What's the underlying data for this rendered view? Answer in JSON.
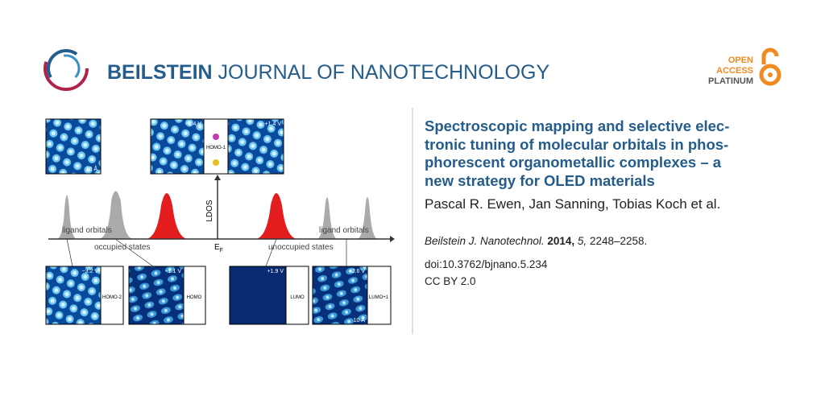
{
  "header": {
    "journal_bold": "BEILSTEIN",
    "journal_rest": "JOURNAL OF NANOTECHNOLOGY",
    "badge": [
      "OPEN",
      "ACCESS",
      "PLATINUM"
    ]
  },
  "figure": {
    "tiles": {
      "top_left": "10 Å",
      "top_mid_left": "−1.4 V",
      "top_mid_right": "+1.4 V",
      "top_mid_orbital": "HOMO-1",
      "b1_voltage": "−3.2 V",
      "b1_orbital": "HOMO-2",
      "b2_voltage": "−1.1 V",
      "b2_orbital": "HOMO",
      "b3_voltage": "+1.9 V",
      "b3_orbital": "LUMO",
      "b4_voltage": "+2.6 V",
      "b4_orbital": "LUMO+1",
      "b4_scale": "10 Å"
    },
    "axis": {
      "y_label": "LDOS",
      "x_main": "E",
      "x_sub": "F",
      "left_ligand": "ligand orbitals",
      "occupied": "occupied states",
      "unoccupied": "unoccupied states",
      "right_ligand": "ligand orbitals"
    }
  },
  "article": {
    "title_lines": [
      "Spectroscopic mapping and selective elec-",
      "tronic tuning of molecular orbitals in phos-",
      "phorescent organometallic complexes – a",
      "new strategy for OLED materials"
    ],
    "authors": "Pascal R. Ewen, Jan Sanning, Tobias Koch et al.",
    "citation": {
      "journal": "Beilstein J. Nanotechnol.",
      "year": "2014,",
      "volume": "5,",
      "pages": "2248–2258."
    },
    "doi": "doi:10.3762/bjnano.5.234",
    "license": "CC BY 2.0"
  }
}
